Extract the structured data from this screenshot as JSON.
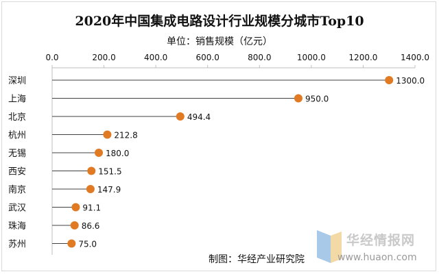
{
  "title": "2020年中国集成电路设计行业规模分城市Top10",
  "source": "制图：华经产业研究院",
  "watermark": {
    "name": "华经情报网",
    "url": "www.huaon.com"
  },
  "colors": {
    "marker": "#e07b24",
    "line": "#404040",
    "axis": "#bfbfbf",
    "text": "#111111"
  },
  "chart_data": {
    "type": "dot-plot",
    "subtitle": "单位：销售规模（亿元）",
    "categories": [
      "深圳",
      "上海",
      "北京",
      "杭州",
      "无锡",
      "西安",
      "南京",
      "武汉",
      "珠海",
      "苏州"
    ],
    "values": [
      1300.0,
      950.0,
      494.4,
      212.8,
      180.0,
      151.5,
      147.9,
      91.1,
      86.6,
      75.0
    ],
    "value_labels": [
      "1300.0",
      "950.0",
      "494.4",
      "212.8",
      "180.0",
      "151.5",
      "147.9",
      "91.1",
      "86.6",
      "75.0"
    ],
    "xlim": [
      0,
      1400
    ],
    "x_ticks": [
      "0.0",
      "200.0",
      "400.0",
      "600.0",
      "800.0",
      "1000.0",
      "1200.0",
      "1400.0"
    ],
    "x_axis_position": "top",
    "grid": false,
    "legend": "none"
  }
}
